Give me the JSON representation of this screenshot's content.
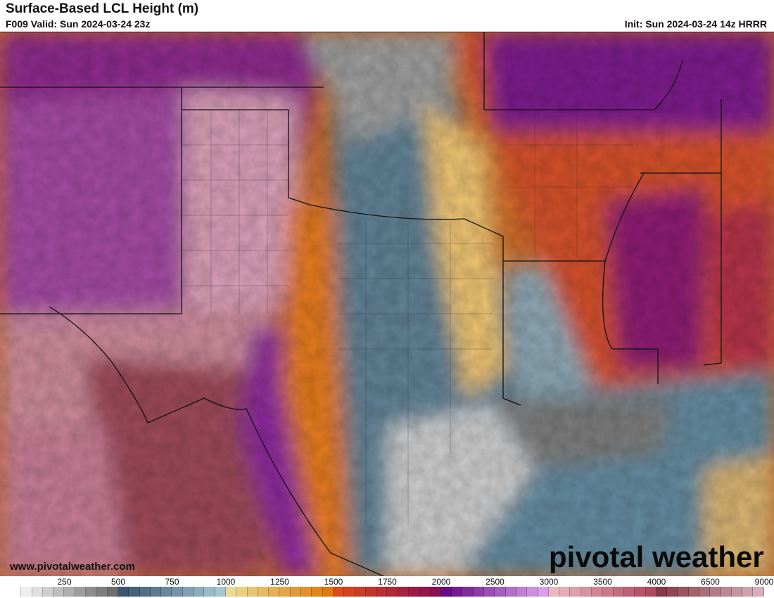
{
  "header": {
    "title": "Surface-Based LCL Height (m)",
    "valid": "F009 Valid: Sun 2024-03-24 23z",
    "init": "Init: Sun 2024-03-24 14z HRRR"
  },
  "watermark": {
    "site": "www.pivotalweather.com",
    "logo": "pivotal weather"
  },
  "colorbar": {
    "unit": "m",
    "labels": [
      "250",
      "500",
      "750",
      "1000",
      "1250",
      "1500",
      "1750",
      "2000",
      "2500",
      "3000",
      "3500",
      "4000",
      "6500",
      "9000"
    ],
    "segments": [
      {
        "from": "#ffffff",
        "to": "#6e6e6e"
      },
      {
        "from": "#3a5670",
        "to": "#a6c6d0"
      },
      {
        "from": "#eadb8e",
        "to": "#e07a10"
      },
      {
        "from": "#e04818",
        "to": "#8a1050"
      },
      {
        "from": "#6a0a8a",
        "to": "#d8a0ea"
      },
      {
        "from": "#ecb8c0",
        "to": "#b04860"
      },
      {
        "from": "#8a3848",
        "to": "#d4b0b8"
      }
    ]
  },
  "map_colors": {
    "low_gray": "#9a9a9a",
    "blue_gray": "#5e7f92",
    "yellow": "#e8c070",
    "orange": "#e07820",
    "red": "#c02830",
    "purple": "#7a1a9a",
    "pink": "#d89aa8",
    "maroon": "#9a4a58",
    "gulf": "#6a8ea0"
  }
}
